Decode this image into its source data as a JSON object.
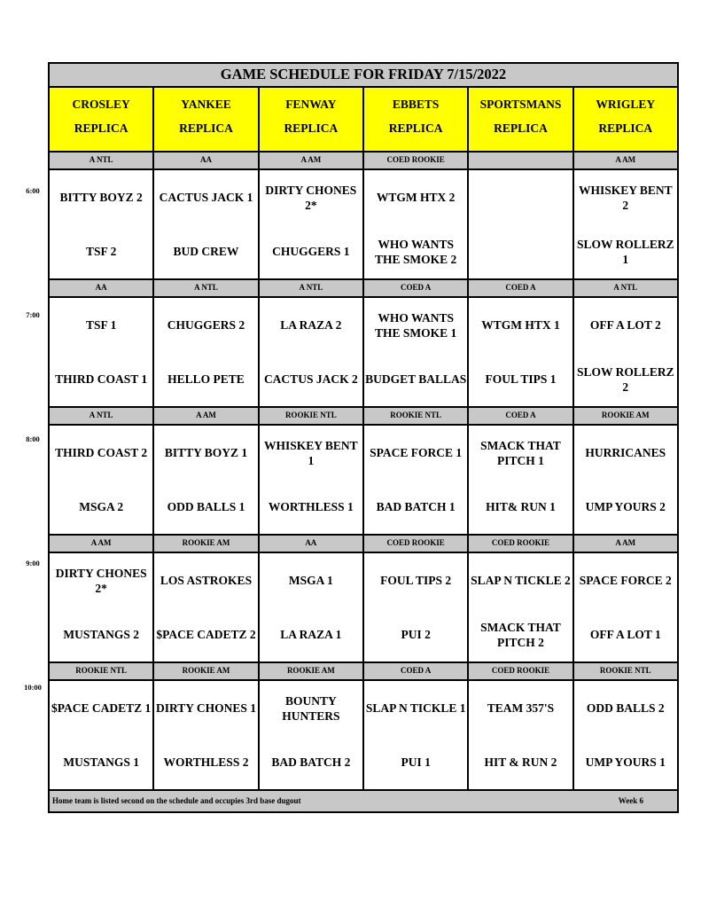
{
  "title": "GAME SCHEDULE FOR FRIDAY 7/15/2022",
  "fields": [
    {
      "name": "CROSLEY",
      "sub": "REPLICA"
    },
    {
      "name": "YANKEE",
      "sub": "REPLICA"
    },
    {
      "name": "FENWAY",
      "sub": "REPLICA"
    },
    {
      "name": "EBBETS",
      "sub": "REPLICA"
    },
    {
      "name": "SPORTSMANS",
      "sub": "REPLICA"
    },
    {
      "name": "WRIGLEY",
      "sub": "REPLICA"
    }
  ],
  "colors": {
    "header_bg": "#ffff00",
    "band_bg": "#c8c8c8"
  },
  "slots": [
    {
      "time": "6:00",
      "divisions": [
        "A NTL",
        "AA",
        "A AM",
        "COED ROOKIE",
        "",
        "A AM"
      ],
      "games": [
        [
          "BITTY BOYZ 2",
          "TSF 2"
        ],
        [
          "CACTUS JACK 1",
          "BUD CREW"
        ],
        [
          "DIRTY CHONES 2*",
          "CHUGGERS 1"
        ],
        [
          "WTGM HTX 2",
          "WHO WANTS THE SMOKE 2"
        ],
        [
          "",
          ""
        ],
        [
          "WHISKEY BENT 2",
          "SLOW ROLLERZ 1"
        ]
      ]
    },
    {
      "time": "7:00",
      "divisions": [
        "AA",
        "A NTL",
        "A NTL",
        "COED A",
        "COED A",
        "A NTL"
      ],
      "games": [
        [
          "TSF 1",
          "THIRD COAST 1"
        ],
        [
          "CHUGGERS 2",
          "HELLO PETE"
        ],
        [
          "LA RAZA 2",
          "CACTUS JACK 2"
        ],
        [
          "WHO WANTS THE SMOKE 1",
          "BUDGET BALLAS"
        ],
        [
          "WTGM HTX 1",
          "FOUL TIPS 1"
        ],
        [
          "OFF A LOT 2",
          "SLOW ROLLERZ 2"
        ]
      ]
    },
    {
      "time": "8:00",
      "divisions": [
        "A NTL",
        "A AM",
        "ROOKIE NTL",
        "ROOKIE NTL",
        "COED A",
        "ROOKIE AM"
      ],
      "games": [
        [
          "THIRD COAST 2",
          "MSGA 2"
        ],
        [
          "BITTY BOYZ 1",
          "ODD BALLS 1"
        ],
        [
          "WHISKEY BENT 1",
          "WORTHLESS 1"
        ],
        [
          "SPACE FORCE 1",
          "BAD BATCH 1"
        ],
        [
          "SMACK THAT PITCH 1",
          "HIT& RUN 1"
        ],
        [
          "HURRICANES",
          "UMP YOURS 2"
        ]
      ]
    },
    {
      "time": "9:00",
      "divisions": [
        "A AM",
        "ROOKIE AM",
        "AA",
        "COED ROOKIE",
        "COED ROOKIE",
        "A AM"
      ],
      "games": [
        [
          "DIRTY CHONES 2*",
          "MUSTANGS 2"
        ],
        [
          "LOS ASTROKES",
          "$PACE CADETZ 2"
        ],
        [
          "MSGA 1",
          "LA RAZA 1"
        ],
        [
          "FOUL TIPS 2",
          "PUI 2"
        ],
        [
          "SLAP N TICKLE 2",
          "SMACK THAT PITCH 2"
        ],
        [
          "SPACE FORCE 2",
          "OFF A LOT 1"
        ]
      ]
    },
    {
      "time": "10:00",
      "divisions": [
        "ROOKIE NTL",
        "ROOKIE AM",
        "ROOKIE AM",
        "COED A",
        "COED ROOKIE",
        "ROOKIE NTL"
      ],
      "games": [
        [
          "$PACE CADETZ 1",
          "MUSTANGS 1"
        ],
        [
          "DIRTY CHONES 1",
          "WORTHLESS 2"
        ],
        [
          "BOUNTY HUNTERS",
          "BAD BATCH 2"
        ],
        [
          "SLAP N TICKLE 1",
          "PUI 1"
        ],
        [
          "TEAM 357'S",
          "HIT & RUN 2"
        ],
        [
          "ODD BALLS 2",
          "UMP YOURS 1"
        ]
      ]
    }
  ],
  "footer": {
    "note": "Home team is listed second on the schedule and occupies 3rd base dugout",
    "week": "Week 6"
  }
}
